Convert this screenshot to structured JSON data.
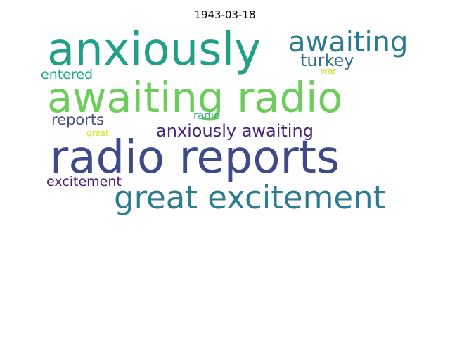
{
  "title": "1943-03-18",
  "words": [
    {
      "text": "anxiously",
      "color": "#22a087"
    },
    {
      "text": "awaiting",
      "color": "#2a7b8e"
    },
    {
      "text": "turkey",
      "color": "#2e6d8e"
    },
    {
      "text": "war",
      "color": "#b5de2b"
    },
    {
      "text": "entered",
      "color": "#21a585"
    },
    {
      "text": "awaiting radio",
      "color": "#6ccd5a"
    },
    {
      "text": "reports",
      "color": "#46508a"
    },
    {
      "text": "radio",
      "color": "#2db27d"
    },
    {
      "text": "great",
      "color": "#d8e219"
    },
    {
      "text": "anxiously awaiting",
      "color": "#482677"
    },
    {
      "text": "radio reports",
      "color": "#3e4a89"
    },
    {
      "text": "excitement",
      "color": "#481d6f"
    },
    {
      "text": "great excitement",
      "color": "#2c7e8e"
    }
  ]
}
